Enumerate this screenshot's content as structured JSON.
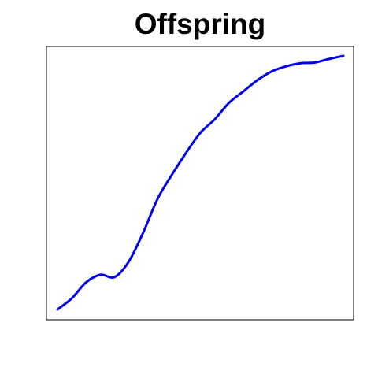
{
  "chart_data": {
    "type": "line",
    "title": "Offspring",
    "xlabel": "",
    "ylabel": "",
    "grid": false,
    "axes_ticks_visible": false,
    "series": [
      {
        "color": "#0000ee",
        "x": [
          0.0,
          0.05,
          0.1,
          0.15,
          0.2,
          0.25,
          0.3,
          0.35,
          0.4,
          0.45,
          0.5,
          0.55,
          0.6,
          0.65,
          0.7,
          0.75,
          0.8,
          0.85,
          0.9,
          0.95,
          1.0
        ],
        "y": [
          0.0,
          0.044,
          0.107,
          0.137,
          0.128,
          0.19,
          0.304,
          0.436,
          0.531,
          0.618,
          0.697,
          0.75,
          0.815,
          0.86,
          0.905,
          0.939,
          0.959,
          0.971,
          0.974,
          0.988,
          1.0
        ]
      }
    ]
  },
  "colors": {
    "line": "#0000ee",
    "frame": "#000000",
    "background": "#ffffff"
  }
}
